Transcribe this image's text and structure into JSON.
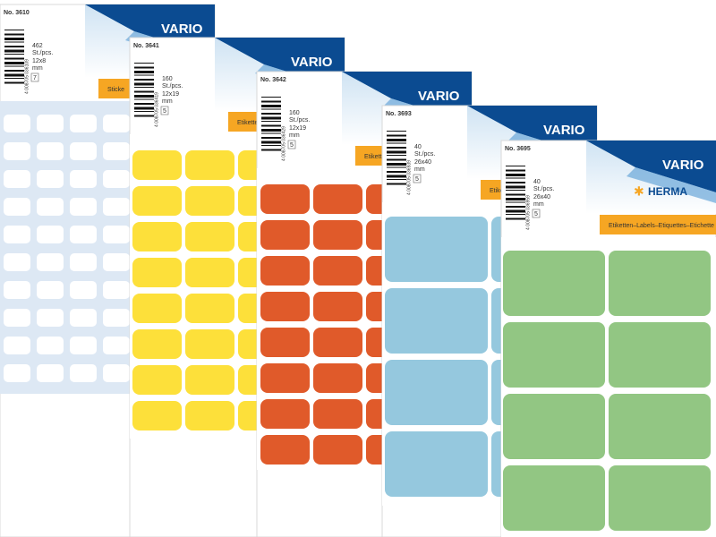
{
  "packs": [
    {
      "number": "No. 3610",
      "count": "462",
      "unit": "St./pcs.",
      "size": "12x8",
      "size_unit": "mm",
      "pack_qty": "7",
      "brand": "VARIO",
      "strip": "Sticke",
      "barcode": "4 008705 036109"
    },
    {
      "number": "No. 3641",
      "count": "160",
      "unit": "St./pcs.",
      "size": "12x19",
      "size_unit": "mm",
      "pack_qty": "5",
      "brand": "VARIO",
      "strip": "Etiketten–Label",
      "barcode": "4 008705 036419"
    },
    {
      "number": "No. 3642",
      "count": "160",
      "unit": "St./pcs.",
      "size": "12x19",
      "size_unit": "mm",
      "pack_qty": "5",
      "brand": "VARIO",
      "strip": "Etiketten–Lab",
      "barcode": "4 008705 036429"
    },
    {
      "number": "No. 3693",
      "count": "40",
      "unit": "St./pcs.",
      "size": "26x40",
      "size_unit": "mm",
      "pack_qty": "5",
      "brand": "VARIO",
      "strip": "Etikett",
      "barcode": "4 008705 036939"
    },
    {
      "number": "No. 3695",
      "count": "40",
      "unit": "St./pcs.",
      "size": "26x40",
      "size_unit": "mm",
      "pack_qty": "5",
      "brand": "VARIO",
      "strip": "Etiketten–Labels–Etiquettes–Etichette",
      "barcode": "4 008705 036959"
    }
  ],
  "herma": "HERMA"
}
